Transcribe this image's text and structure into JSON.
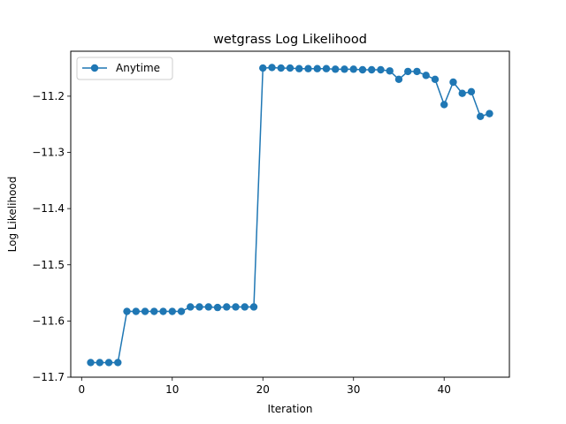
{
  "chart_data": {
    "type": "line",
    "title": "wetgrass Log Likelihood",
    "xlabel": "Iteration",
    "ylabel": "Log Likelihood",
    "xlim": [
      -1.2,
      47.2
    ],
    "ylim": [
      -11.7,
      -11.12
    ],
    "xticks": [
      0,
      10,
      20,
      30,
      40
    ],
    "yticks": [
      -11.7,
      -11.6,
      -11.5,
      -11.4,
      -11.3,
      -11.2
    ],
    "grid": false,
    "legend": "top-left",
    "series": [
      {
        "name": "Anytime",
        "color": "#1f77b4",
        "marker": "circle",
        "x": [
          1,
          2,
          3,
          4,
          5,
          6,
          7,
          8,
          9,
          10,
          11,
          12,
          13,
          14,
          15,
          16,
          17,
          18,
          19,
          20,
          21,
          22,
          23,
          24,
          25,
          26,
          27,
          28,
          29,
          30,
          31,
          32,
          33,
          34,
          35,
          36,
          37,
          38,
          39,
          40,
          41,
          42,
          43,
          44,
          45
        ],
        "y": [
          -11.674,
          -11.674,
          -11.674,
          -11.674,
          -11.583,
          -11.583,
          -11.583,
          -11.583,
          -11.583,
          -11.583,
          -11.583,
          -11.575,
          -11.575,
          -11.575,
          -11.576,
          -11.575,
          -11.575,
          -11.575,
          -11.575,
          -11.15,
          -11.149,
          -11.15,
          -11.15,
          -11.151,
          -11.151,
          -11.151,
          -11.151,
          -11.152,
          -11.152,
          -11.152,
          -11.153,
          -11.153,
          -11.153,
          -11.155,
          -11.17,
          -11.156,
          -11.156,
          -11.163,
          -11.17,
          -11.215,
          -11.175,
          -11.195,
          -11.192,
          -11.236,
          -11.231
        ]
      }
    ]
  }
}
